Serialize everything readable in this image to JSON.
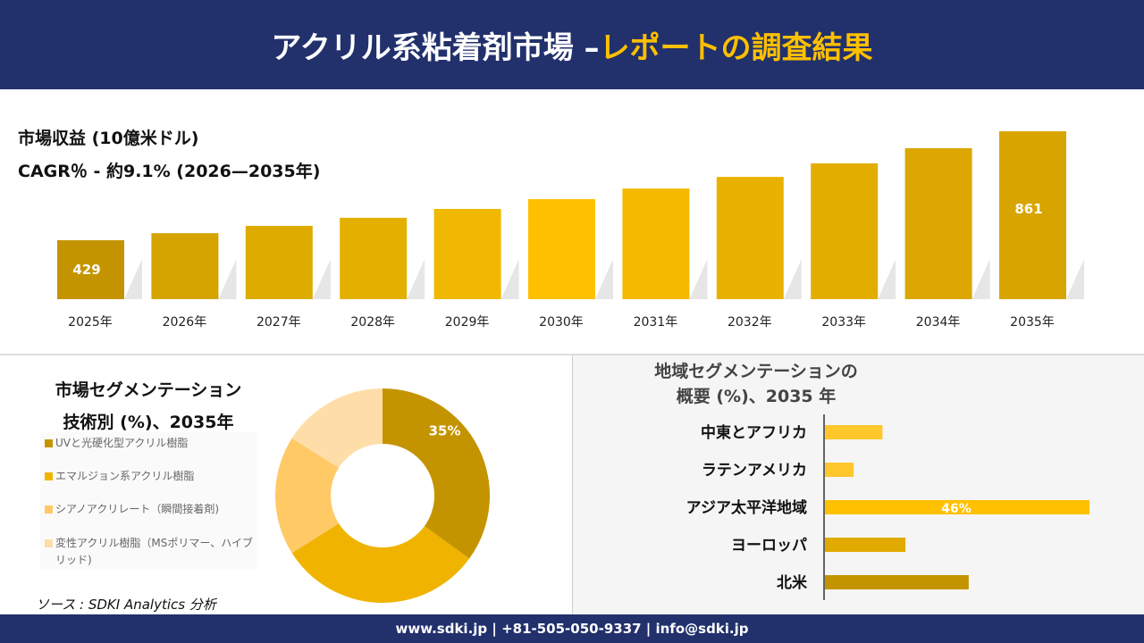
{
  "header": {
    "title_main": "アクリル系粘着剤市場 –",
    "title_highlight": "レポートの調査結果"
  },
  "colors": {
    "navy": "#22316c",
    "accent": "#ffc000"
  },
  "chart_data": [
    {
      "type": "bar",
      "title": "市場収益 (10億米ドル)",
      "subtitle": "CAGR％ - 約9.1% (2026—2035年)",
      "categories": [
        "2025年",
        "2026年",
        "2027年",
        "2028年",
        "2029年",
        "2030年",
        "2031年",
        "2032年",
        "2033年",
        "2034年",
        "2035年"
      ],
      "values": [
        429,
        457,
        486,
        518,
        553,
        592,
        634,
        680,
        734,
        794,
        861
      ],
      "data_labels": {
        "0": "429",
        "10": "861"
      },
      "colors": [
        "#c49400",
        "#d4a300",
        "#ddab00",
        "#e3b000",
        "#f0b800",
        "#ffc000",
        "#f5b900",
        "#eab200",
        "#e3ad00",
        "#dba700",
        "#d8a500"
      ]
    },
    {
      "type": "pie",
      "donut": true,
      "title_line1": "市場セグメンテーション",
      "title_line2": "技術別 (%)、2035年",
      "labels": [
        "UVと光硬化型アクリル樹脂",
        "エマルジョン系アクリル樹脂",
        "シアノアクリレート（瞬間接着剤)",
        "変性アクリル樹脂（MSポリマー、ハイブリッド)"
      ],
      "values": [
        35,
        31,
        18,
        16
      ],
      "data_labels": {
        "0": "35%"
      },
      "colors": [
        "#c49400",
        "#f0b400",
        "#ffc966",
        "#ffdda8"
      ]
    },
    {
      "type": "bar",
      "orientation": "horizontal",
      "title_line1": "地域セグメンテーションの",
      "title_line2": "概要 (%)、2035 年",
      "categories": [
        "中東とアフリカ",
        "ラテンアメリカ",
        "アジア太平洋地域",
        "ヨーロッパ",
        "北米"
      ],
      "values": [
        10,
        5,
        46,
        14,
        25
      ],
      "data_labels": {
        "2": "46%"
      },
      "colors": [
        "#ffc72c",
        "#ffc72c",
        "#ffc000",
        "#e0aa00",
        "#c49400"
      ]
    }
  ],
  "source": "ソース : SDKI Analytics 分析",
  "footer": "www.sdki.jp | +81-505-050-9337 | info@sdki.jp"
}
